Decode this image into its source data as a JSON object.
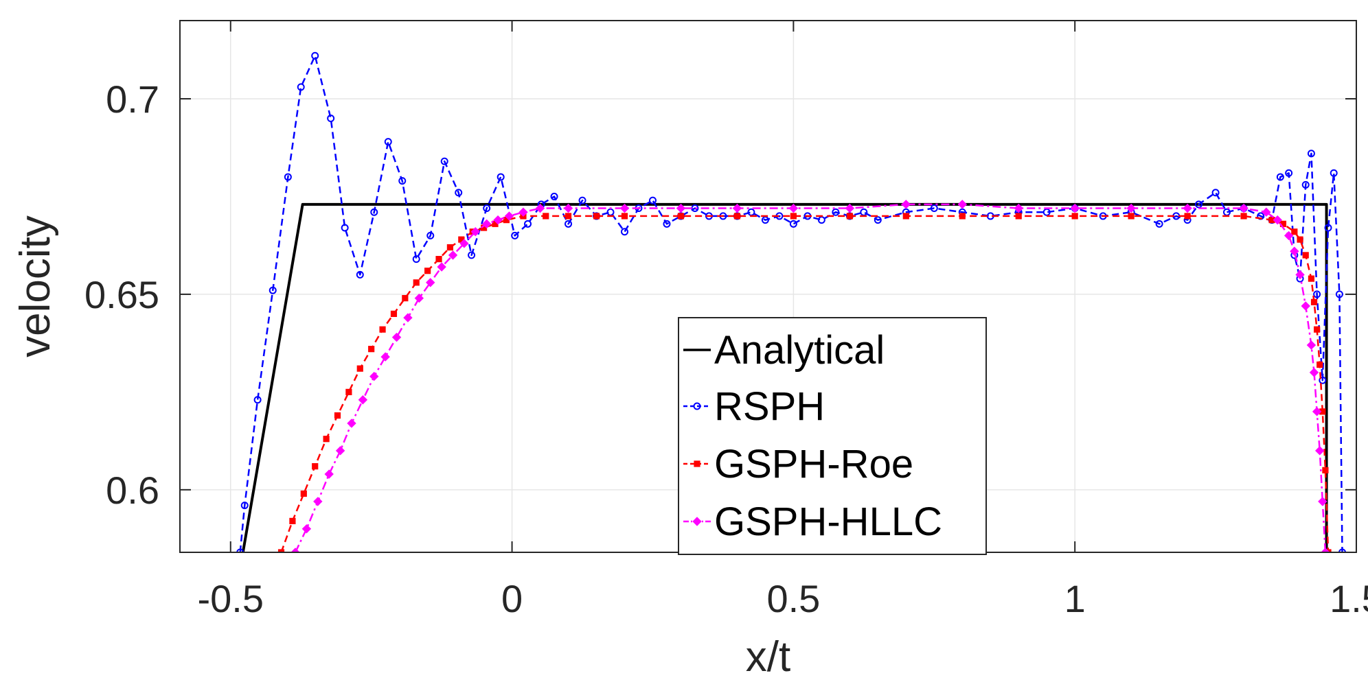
{
  "chart_data": {
    "type": "line",
    "title": "",
    "xlabel": "x/t",
    "ylabel": "velocity",
    "xlim": [
      -0.59,
      1.5
    ],
    "ylim": [
      0.584,
      0.72
    ],
    "xticks": [
      -0.5,
      0,
      0.5,
      1,
      1.5
    ],
    "xtick_labels": [
      "-0.5",
      "0",
      "0.5",
      "1",
      "1.5"
    ],
    "yticks": [
      0.6,
      0.65,
      0.7
    ],
    "ytick_labels": [
      "0.6",
      "0.65",
      "0.7"
    ],
    "grid": true,
    "legend_position": "bottom-center",
    "series": [
      {
        "name": "Analytical",
        "color": "#000000",
        "style": "solid",
        "marker": "none",
        "x": [
          -0.478,
          -0.372,
          1.447,
          1.447
        ],
        "y": [
          0.584,
          0.673,
          0.673,
          0.584
        ]
      },
      {
        "name": "RSPH",
        "color": "#0000ff",
        "style": "dashed",
        "marker": "circle",
        "x": [
          -0.483,
          -0.475,
          -0.452,
          -0.425,
          -0.398,
          -0.375,
          -0.35,
          -0.322,
          -0.297,
          -0.27,
          -0.245,
          -0.22,
          -0.195,
          -0.17,
          -0.145,
          -0.12,
          -0.095,
          -0.072,
          -0.045,
          -0.02,
          0.005,
          0.028,
          0.052,
          0.075,
          0.1,
          0.125,
          0.15,
          0.175,
          0.2,
          0.225,
          0.25,
          0.275,
          0.3,
          0.325,
          0.35,
          0.375,
          0.4,
          0.425,
          0.45,
          0.475,
          0.5,
          0.525,
          0.55,
          0.575,
          0.6,
          0.625,
          0.65,
          0.7,
          0.75,
          0.8,
          0.85,
          0.9,
          0.95,
          1.0,
          1.05,
          1.1,
          1.15,
          1.18,
          1.2,
          1.22,
          1.25,
          1.27,
          1.3,
          1.33,
          1.35,
          1.365,
          1.38,
          1.39,
          1.4,
          1.41,
          1.42,
          1.43,
          1.44,
          1.45,
          1.46,
          1.47,
          1.475
        ],
        "y": [
          0.584,
          0.596,
          0.623,
          0.651,
          0.68,
          0.703,
          0.711,
          0.695,
          0.667,
          0.655,
          0.671,
          0.689,
          0.679,
          0.659,
          0.665,
          0.684,
          0.676,
          0.66,
          0.672,
          0.68,
          0.665,
          0.668,
          0.673,
          0.675,
          0.668,
          0.674,
          0.67,
          0.671,
          0.666,
          0.672,
          0.674,
          0.668,
          0.67,
          0.672,
          0.67,
          0.67,
          0.67,
          0.671,
          0.669,
          0.67,
          0.668,
          0.67,
          0.669,
          0.671,
          0.67,
          0.671,
          0.669,
          0.671,
          0.672,
          0.671,
          0.67,
          0.671,
          0.671,
          0.672,
          0.67,
          0.671,
          0.668,
          0.67,
          0.669,
          0.673,
          0.676,
          0.671,
          0.672,
          0.67,
          0.669,
          0.68,
          0.681,
          0.66,
          0.654,
          0.678,
          0.686,
          0.65,
          0.628,
          0.667,
          0.681,
          0.65,
          0.584
        ]
      },
      {
        "name": "GSPH-Roe",
        "color": "#ff0000",
        "style": "dashed",
        "marker": "square",
        "x": [
          -0.41,
          -0.39,
          -0.37,
          -0.35,
          -0.33,
          -0.31,
          -0.29,
          -0.27,
          -0.25,
          -0.23,
          -0.21,
          -0.19,
          -0.17,
          -0.15,
          -0.13,
          -0.11,
          -0.09,
          -0.07,
          -0.05,
          -0.03,
          -0.01,
          0.02,
          0.06,
          0.1,
          0.15,
          0.2,
          0.3,
          0.4,
          0.5,
          0.6,
          0.7,
          0.8,
          0.9,
          1.0,
          1.1,
          1.2,
          1.3,
          1.35,
          1.37,
          1.39,
          1.4,
          1.41,
          1.42,
          1.425,
          1.43,
          1.435,
          1.44,
          1.445,
          1.45
        ],
        "y": [
          0.584,
          0.592,
          0.599,
          0.606,
          0.613,
          0.619,
          0.625,
          0.631,
          0.636,
          0.641,
          0.645,
          0.649,
          0.653,
          0.656,
          0.659,
          0.662,
          0.664,
          0.666,
          0.667,
          0.668,
          0.669,
          0.67,
          0.67,
          0.67,
          0.67,
          0.67,
          0.67,
          0.67,
          0.67,
          0.67,
          0.67,
          0.67,
          0.67,
          0.67,
          0.67,
          0.67,
          0.67,
          0.669,
          0.668,
          0.666,
          0.664,
          0.66,
          0.654,
          0.648,
          0.641,
          0.632,
          0.62,
          0.605,
          0.584
        ]
      },
      {
        "name": "GSPH-HLLC",
        "color": "#ff00ff",
        "style": "dashdot",
        "marker": "diamond",
        "x": [
          -0.385,
          -0.365,
          -0.345,
          -0.325,
          -0.305,
          -0.285,
          -0.265,
          -0.245,
          -0.225,
          -0.205,
          -0.185,
          -0.165,
          -0.145,
          -0.125,
          -0.105,
          -0.085,
          -0.065,
          -0.045,
          -0.025,
          -0.005,
          0.02,
          0.05,
          0.1,
          0.2,
          0.3,
          0.4,
          0.5,
          0.6,
          0.7,
          0.8,
          0.9,
          1.0,
          1.1,
          1.2,
          1.3,
          1.34,
          1.36,
          1.38,
          1.39,
          1.4,
          1.41,
          1.42,
          1.425,
          1.43,
          1.435,
          1.44,
          1.445
        ],
        "y": [
          0.584,
          0.59,
          0.597,
          0.604,
          0.61,
          0.617,
          0.623,
          0.629,
          0.634,
          0.639,
          0.644,
          0.649,
          0.653,
          0.657,
          0.66,
          0.663,
          0.666,
          0.668,
          0.669,
          0.67,
          0.671,
          0.672,
          0.672,
          0.672,
          0.672,
          0.672,
          0.672,
          0.672,
          0.673,
          0.673,
          0.672,
          0.672,
          0.672,
          0.672,
          0.672,
          0.671,
          0.669,
          0.665,
          0.661,
          0.655,
          0.647,
          0.637,
          0.63,
          0.62,
          0.61,
          0.597,
          0.584
        ]
      }
    ]
  }
}
